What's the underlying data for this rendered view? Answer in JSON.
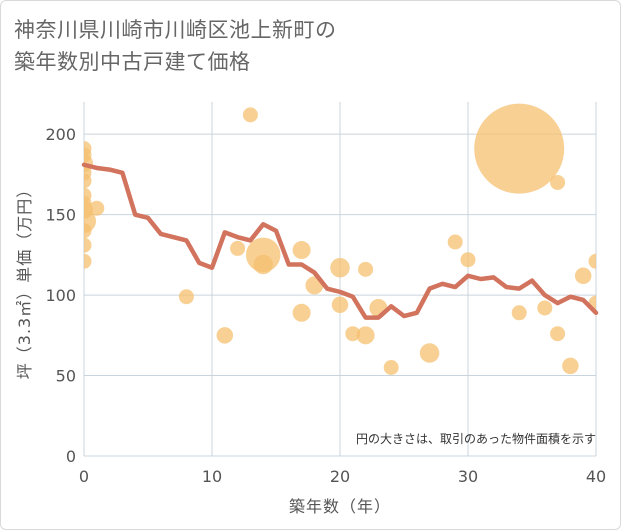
{
  "chart_data": {
    "type": "scatter",
    "title_lines": [
      "神奈川県川崎市川崎区池上新町の",
      "築年数別中古戸建て価格"
    ],
    "xlabel": "築年数（年）",
    "ylabel": "坪（3.3㎡）単価（万円）",
    "xlim": [
      0,
      40
    ],
    "ylim": [
      0,
      220
    ],
    "xticks": [
      0,
      10,
      20,
      30,
      40
    ],
    "yticks": [
      0,
      50,
      100,
      150,
      200
    ],
    "note": "円の大きさは、取引のあった物件面積を示す",
    "colors": {
      "bubble": "#f5c06f",
      "line": "#d2735e",
      "grid": "#c9d4dd"
    },
    "bubbles": [
      {
        "x": 0,
        "y": 191,
        "s": 1
      },
      {
        "x": 0,
        "y": 187,
        "s": 1
      },
      {
        "x": 0,
        "y": 182,
        "s": 1.2
      },
      {
        "x": 0,
        "y": 176,
        "s": 1
      },
      {
        "x": 0,
        "y": 171,
        "s": 1
      },
      {
        "x": 0,
        "y": 162,
        "s": 1
      },
      {
        "x": 0,
        "y": 157,
        "s": 1
      },
      {
        "x": 0,
        "y": 153,
        "s": 1.2
      },
      {
        "x": 0,
        "y": 146,
        "s": 1.6
      },
      {
        "x": 0,
        "y": 140,
        "s": 1
      },
      {
        "x": 0,
        "y": 131,
        "s": 1
      },
      {
        "x": 0,
        "y": 121,
        "s": 1
      },
      {
        "x": 1,
        "y": 154,
        "s": 1
      },
      {
        "x": 8,
        "y": 99,
        "s": 1
      },
      {
        "x": 11,
        "y": 75,
        "s": 1.1
      },
      {
        "x": 12,
        "y": 129,
        "s": 1
      },
      {
        "x": 13,
        "y": 212,
        "s": 1
      },
      {
        "x": 14,
        "y": 125,
        "s": 2.3
      },
      {
        "x": 14,
        "y": 119,
        "s": 1.3
      },
      {
        "x": 17,
        "y": 128,
        "s": 1.2
      },
      {
        "x": 17,
        "y": 89,
        "s": 1.2
      },
      {
        "x": 18,
        "y": 106,
        "s": 1.2
      },
      {
        "x": 20,
        "y": 117,
        "s": 1.3
      },
      {
        "x": 20,
        "y": 94,
        "s": 1.1
      },
      {
        "x": 21,
        "y": 76,
        "s": 1
      },
      {
        "x": 22,
        "y": 116,
        "s": 1
      },
      {
        "x": 22,
        "y": 75,
        "s": 1.2
      },
      {
        "x": 23,
        "y": 92,
        "s": 1.2
      },
      {
        "x": 24,
        "y": 55,
        "s": 1
      },
      {
        "x": 27,
        "y": 64,
        "s": 1.3
      },
      {
        "x": 29,
        "y": 133,
        "s": 1
      },
      {
        "x": 30,
        "y": 122,
        "s": 1
      },
      {
        "x": 34,
        "y": 191,
        "s": 6
      },
      {
        "x": 34,
        "y": 89,
        "s": 1
      },
      {
        "x": 36,
        "y": 92,
        "s": 1
      },
      {
        "x": 37,
        "y": 170,
        "s": 1
      },
      {
        "x": 37,
        "y": 76,
        "s": 1
      },
      {
        "x": 38,
        "y": 56,
        "s": 1.1
      },
      {
        "x": 39,
        "y": 112,
        "s": 1.1
      },
      {
        "x": 40,
        "y": 121,
        "s": 1
      },
      {
        "x": 40,
        "y": 95,
        "s": 1
      }
    ],
    "trend_line": [
      {
        "x": 0,
        "y": 181
      },
      {
        "x": 1,
        "y": 179
      },
      {
        "x": 2,
        "y": 178
      },
      {
        "x": 3,
        "y": 176
      },
      {
        "x": 4,
        "y": 150
      },
      {
        "x": 5,
        "y": 148
      },
      {
        "x": 6,
        "y": 138
      },
      {
        "x": 7,
        "y": 136
      },
      {
        "x": 8,
        "y": 134
      },
      {
        "x": 9,
        "y": 120
      },
      {
        "x": 10,
        "y": 117
      },
      {
        "x": 11,
        "y": 139
      },
      {
        "x": 12,
        "y": 136
      },
      {
        "x": 13,
        "y": 134
      },
      {
        "x": 14,
        "y": 144
      },
      {
        "x": 15,
        "y": 140
      },
      {
        "x": 16,
        "y": 119
      },
      {
        "x": 17,
        "y": 119
      },
      {
        "x": 18,
        "y": 114
      },
      {
        "x": 19,
        "y": 104
      },
      {
        "x": 20,
        "y": 102
      },
      {
        "x": 21,
        "y": 99
      },
      {
        "x": 22,
        "y": 86
      },
      {
        "x": 23,
        "y": 86
      },
      {
        "x": 24,
        "y": 93
      },
      {
        "x": 25,
        "y": 87
      },
      {
        "x": 26,
        "y": 89
      },
      {
        "x": 27,
        "y": 104
      },
      {
        "x": 28,
        "y": 107
      },
      {
        "x": 29,
        "y": 105
      },
      {
        "x": 30,
        "y": 112
      },
      {
        "x": 31,
        "y": 110
      },
      {
        "x": 32,
        "y": 111
      },
      {
        "x": 33,
        "y": 105
      },
      {
        "x": 34,
        "y": 104
      },
      {
        "x": 35,
        "y": 109
      },
      {
        "x": 36,
        "y": 100
      },
      {
        "x": 37,
        "y": 95
      },
      {
        "x": 38,
        "y": 99
      },
      {
        "x": 39,
        "y": 97
      },
      {
        "x": 40,
        "y": 89
      }
    ]
  }
}
